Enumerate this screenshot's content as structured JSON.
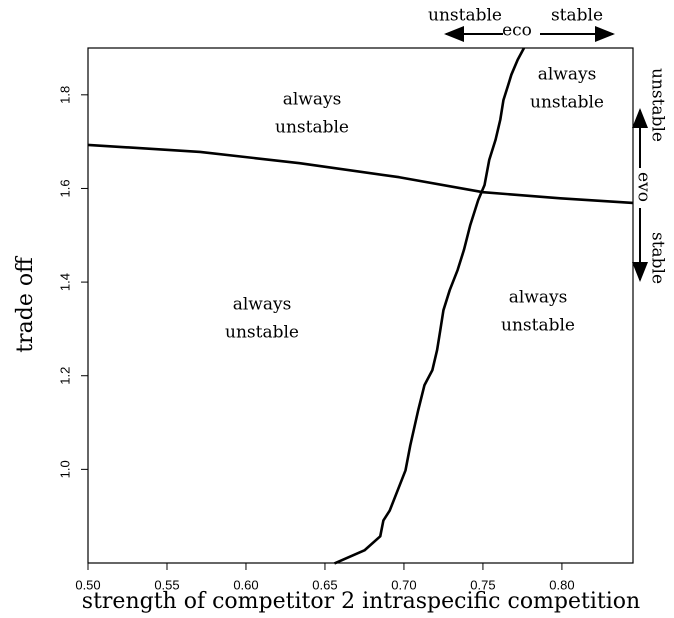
{
  "chart_data": {
    "type": "line",
    "x_label": "strength of competitor 2 intraspecific competition",
    "y_label": "trade off",
    "xlim": [
      0.5,
      0.845
    ],
    "ylim": [
      0.8,
      1.9
    ],
    "xticks": [
      {
        "value": 0.5,
        "label": "0.50"
      },
      0.55,
      {
        "value": 0.6,
        "label": "0.60"
      },
      0.65,
      {
        "value": 0.7,
        "label": "0.70"
      },
      0.75,
      {
        "value": 0.8,
        "label": "0.80"
      }
    ],
    "yticks": [
      {
        "value": 1.0,
        "label": "1.0"
      },
      1.2,
      1.4,
      1.6,
      1.8
    ],
    "series": [
      {
        "color": "#000000",
        "x": [
          0.5,
          0.571,
          0.634,
          0.697,
          0.75,
          0.799,
          0.845
        ],
        "values": [
          1.693,
          1.678,
          1.654,
          1.624,
          1.592,
          1.579,
          1.569
        ]
      },
      {
        "color": "#000000",
        "x": [
          0.656,
          0.675,
          0.685,
          0.687,
          0.691,
          0.696,
          0.701,
          0.704,
          0.709,
          0.713,
          0.718,
          0.721,
          0.723,
          0.725,
          0.729,
          0.734,
          0.738,
          0.742,
          0.747,
          0.751,
          0.754,
          0.758,
          0.761,
          0.763,
          0.766,
          0.768,
          0.772,
          0.776
        ],
        "values": [
          0.799,
          0.827,
          0.857,
          0.891,
          0.912,
          0.955,
          0.998,
          1.051,
          1.126,
          1.18,
          1.212,
          1.255,
          1.297,
          1.34,
          1.383,
          1.426,
          1.469,
          1.522,
          1.575,
          1.607,
          1.661,
          1.704,
          1.747,
          1.789,
          1.821,
          1.843,
          1.875,
          1.9
        ]
      }
    ],
    "annotations": [
      {
        "lines": [
          "always",
          "unstable"
        ]
      },
      {
        "lines": [
          "always",
          "unstable"
        ]
      },
      {
        "lines": [
          "always",
          "unstable"
        ]
      },
      {
        "lines": [
          "always",
          "unstable"
        ]
      }
    ],
    "eco_labels": {
      "left": "unstable",
      "center": "eco",
      "right": "stable"
    },
    "evo_labels": {
      "top": "unstable",
      "center": "evo",
      "bottom": "stable"
    }
  }
}
